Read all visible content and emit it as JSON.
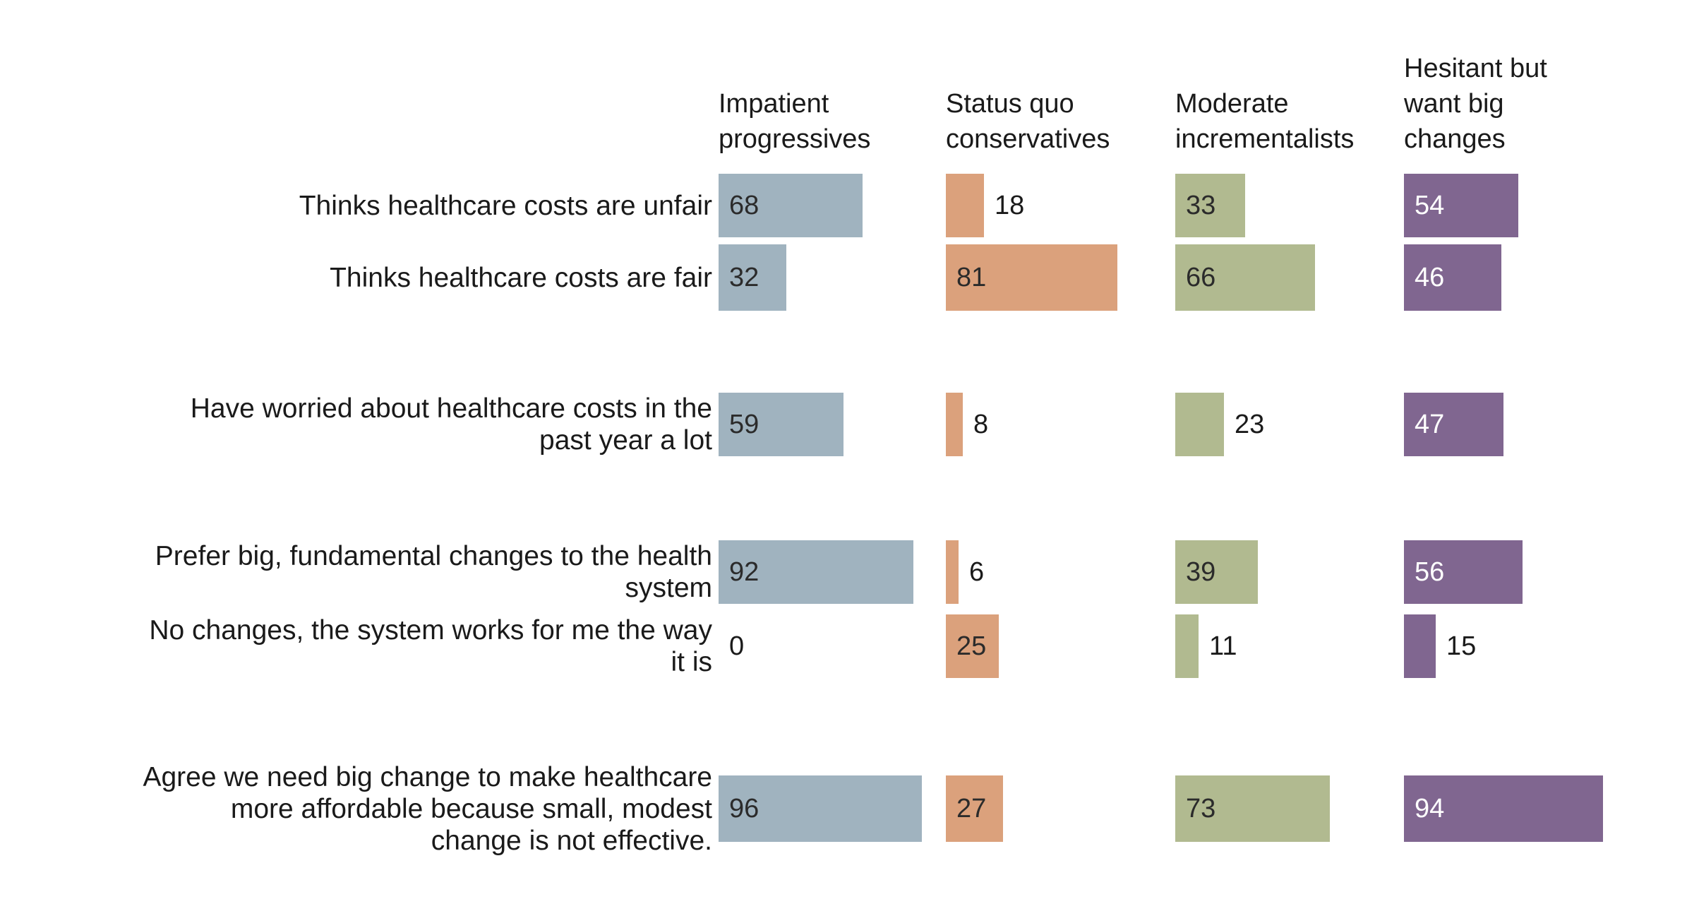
{
  "chart_data": {
    "type": "bar",
    "title": "",
    "xlabel": "",
    "ylabel": "",
    "xlim": [
      0,
      100
    ],
    "groups": [
      "Impatient\nprogressives",
      "Status quo\nconservatives",
      "Moderate\nincrementalists",
      "Hesitant but\nwant big\nchanges"
    ],
    "colors": [
      "#a0b3bf",
      "#dba17c",
      "#b1ba90",
      "#806690"
    ],
    "categories": [
      "Thinks healthcare costs are unfair",
      "Thinks healthcare costs are fair",
      "Have worried about healthcare costs in the\npast year a lot",
      "Prefer big, fundamental changes to the health\nsystem",
      "No changes, the system works for me the way\nit is",
      "Agree we need big change to make healthcare\nmore affordable because small, modest\nchange is not effective."
    ],
    "series": [
      {
        "name": "Impatient\nprogressives",
        "values": [
          68,
          32,
          59,
          92,
          0,
          96
        ]
      },
      {
        "name": "Status quo\nconservatives",
        "values": [
          18,
          81,
          8,
          6,
          25,
          27
        ]
      },
      {
        "name": "Moderate\nincrementalists",
        "values": [
          33,
          66,
          23,
          39,
          11,
          73
        ]
      },
      {
        "name": "Hesitant but\nwant big\nchanges",
        "values": [
          54,
          46,
          47,
          56,
          15,
          94
        ]
      }
    ]
  }
}
